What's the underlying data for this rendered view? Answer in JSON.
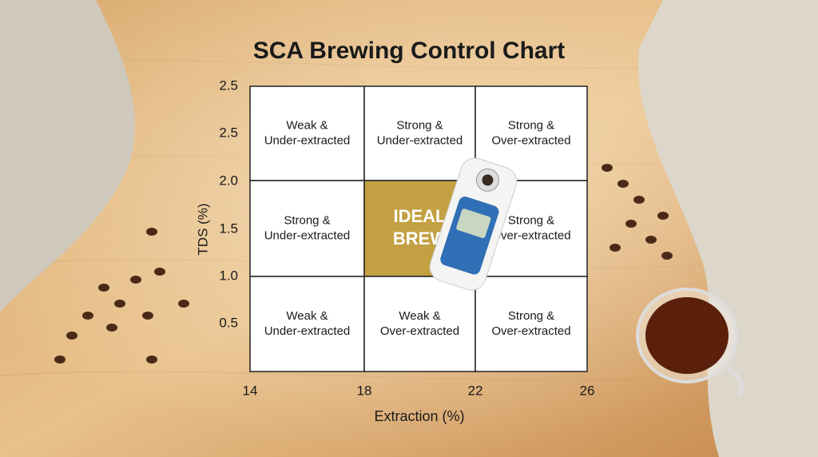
{
  "title": "SCA Brewing Control Chart",
  "y_axis": {
    "label": "TDS (%)",
    "ticks": [
      "2.5",
      "2.5",
      "2.0",
      "1.5",
      "1.0",
      "0.5"
    ]
  },
  "x_axis": {
    "label": "Extraction (%)",
    "ticks": [
      "14",
      "18",
      "22",
      "26"
    ]
  },
  "grid": {
    "rows": [
      [
        [
          "Weak &",
          "Under-extracted"
        ],
        [
          "Strong &",
          "Under-extracted"
        ],
        [
          "Strong &",
          "Over-extracted"
        ]
      ],
      [
        [
          "Strong &",
          "Under-extracted"
        ],
        [
          "IDEAL",
          "BREW"
        ],
        [
          "Strong &",
          "Over-extracted"
        ]
      ],
      [
        [
          "Weak &",
          "Under-extracted"
        ],
        [
          "Weak &",
          "Over-extracted"
        ],
        [
          "Strong &",
          "Over-extracted"
        ]
      ]
    ]
  }
}
